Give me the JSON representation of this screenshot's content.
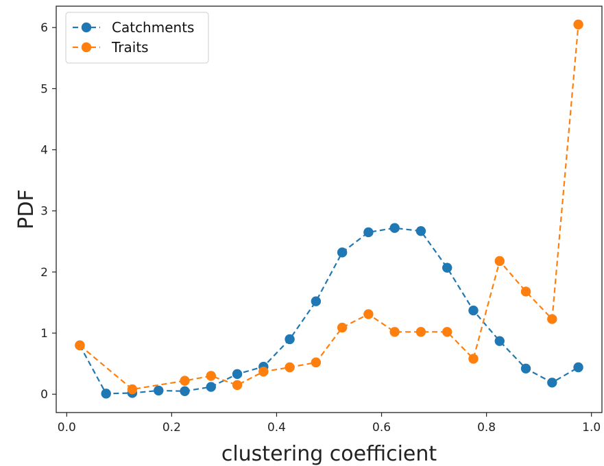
{
  "chart_data": {
    "type": "line",
    "title": "",
    "xlabel": "clustering coefficient",
    "ylabel": "PDF",
    "xlim": [
      -0.02,
      1.02
    ],
    "ylim": [
      -0.3,
      6.35
    ],
    "xticks": [
      0.0,
      0.2,
      0.4,
      0.6,
      0.8,
      1.0
    ],
    "xtick_labels": [
      "0.0",
      "0.2",
      "0.4",
      "0.6",
      "0.8",
      "1.0"
    ],
    "yticks": [
      0,
      1,
      2,
      3,
      4,
      5,
      6
    ],
    "ytick_labels": [
      "0",
      "1",
      "2",
      "3",
      "4",
      "5",
      "6"
    ],
    "grid": false,
    "legend": "top-left",
    "series": [
      {
        "name": "Catchments",
        "color": "#1f77b4",
        "x": [
          0.025,
          0.075,
          0.125,
          0.175,
          0.225,
          0.275,
          0.325,
          0.375,
          0.425,
          0.475,
          0.525,
          0.575,
          0.625,
          0.675,
          0.725,
          0.775,
          0.825,
          0.875,
          0.925,
          0.975
        ],
        "y": [
          0.8,
          0.01,
          0.02,
          0.06,
          0.05,
          0.12,
          0.33,
          0.45,
          0.9,
          1.52,
          2.32,
          2.65,
          2.72,
          2.67,
          2.07,
          1.37,
          0.87,
          0.42,
          0.19,
          0.44
        ]
      },
      {
        "name": "Traits",
        "color": "#ff7f0e",
        "x": [
          0.025,
          0.125,
          0.225,
          0.275,
          0.325,
          0.375,
          0.425,
          0.475,
          0.525,
          0.575,
          0.625,
          0.675,
          0.725,
          0.775,
          0.825,
          0.875,
          0.925,
          0.975
        ],
        "y": [
          0.8,
          0.08,
          0.22,
          0.3,
          0.15,
          0.37,
          0.44,
          0.52,
          1.09,
          1.31,
          1.02,
          1.02,
          1.02,
          0.58,
          2.18,
          1.68,
          1.23,
          6.05
        ]
      }
    ]
  }
}
